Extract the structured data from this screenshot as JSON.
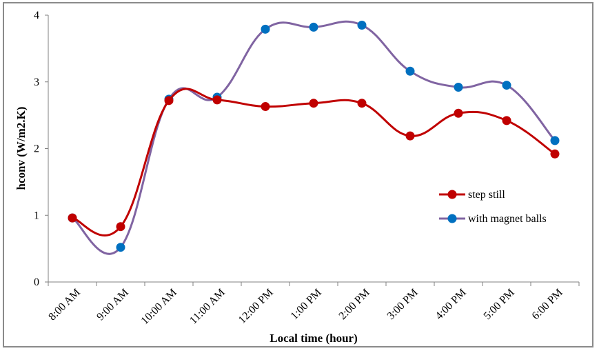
{
  "chart_data": {
    "type": "line",
    "xlabel": "Local time (hour)",
    "ylabel": "hconv (W/m2.K)",
    "ylim": [
      0,
      4
    ],
    "yticks": [
      0,
      1,
      2,
      3,
      4
    ],
    "categories": [
      "8:00 AM",
      "9:00 AM",
      "10:00 AM",
      "11:00 AM",
      "12:00 PM",
      "1:00 PM",
      "2:00 PM",
      "3:00 PM",
      "4:00 PM",
      "5:00 PM",
      "6:00 PM"
    ],
    "smooth": true,
    "grid": false,
    "legend_position": "right",
    "series": [
      {
        "name": "step still",
        "color": "#c00000",
        "values": [
          0.96,
          0.83,
          2.72,
          2.73,
          2.63,
          2.68,
          2.68,
          2.19,
          2.53,
          2.42,
          1.92
        ]
      },
      {
        "name": "with magnet balls",
        "color": "#8064a2",
        "marker_color": "#0070c0",
        "values": [
          0.96,
          0.52,
          2.74,
          2.77,
          3.79,
          3.82,
          3.85,
          3.16,
          2.92,
          2.95,
          2.12
        ]
      }
    ]
  }
}
